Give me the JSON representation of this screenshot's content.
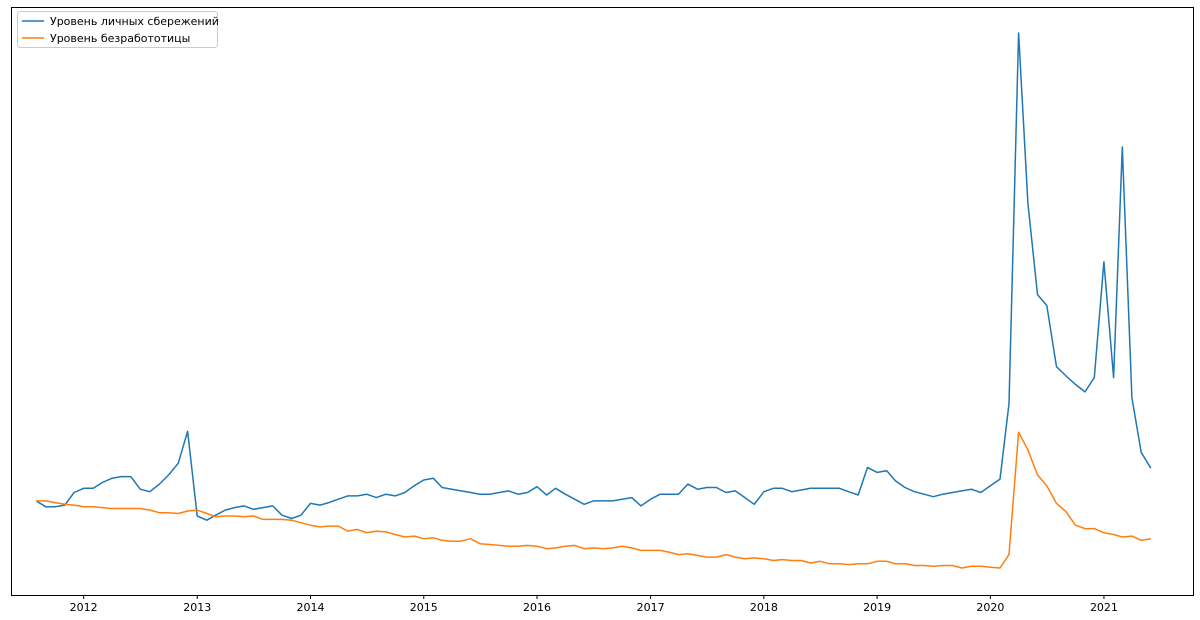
{
  "chart_data": {
    "type": "line",
    "title": "",
    "xlabel": "",
    "ylabel": "",
    "grid": false,
    "legend_position": "top-left",
    "x_tick_labels": [
      "2012",
      "2013",
      "2014",
      "2015",
      "2016",
      "2017",
      "2018",
      "2019",
      "2020",
      "2021"
    ],
    "xlim": [
      "2011-05-15",
      "2021-10-15"
    ],
    "y_ticks_visible": false,
    "series": [
      {
        "name": "Уровень личных сбережений",
        "color": "#1f77b4",
        "points": [
          [
            "2011-08-01",
            8.2
          ],
          [
            "2011-09-01",
            7.5
          ],
          [
            "2011-10-01",
            7.5
          ],
          [
            "2011-11-01",
            7.7
          ],
          [
            "2011-12-01",
            9.2
          ],
          [
            "2012-01-01",
            9.7
          ],
          [
            "2012-02-01",
            9.7
          ],
          [
            "2012-03-01",
            10.4
          ],
          [
            "2012-04-01",
            10.9
          ],
          [
            "2012-05-01",
            11.1
          ],
          [
            "2012-06-01",
            11.1
          ],
          [
            "2012-07-01",
            9.6
          ],
          [
            "2012-08-01",
            9.3
          ],
          [
            "2012-09-01",
            10.2
          ],
          [
            "2012-10-01",
            11.3
          ],
          [
            "2012-11-01",
            12.7
          ],
          [
            "2012-12-01",
            16.5
          ],
          [
            "2013-01-01",
            6.4
          ],
          [
            "2013-02-01",
            5.9
          ],
          [
            "2013-03-01",
            6.5
          ],
          [
            "2013-04-01",
            7.1
          ],
          [
            "2013-05-01",
            7.4
          ],
          [
            "2013-06-01",
            7.6
          ],
          [
            "2013-07-01",
            7.2
          ],
          [
            "2013-08-01",
            7.4
          ],
          [
            "2013-09-01",
            7.6
          ],
          [
            "2013-10-01",
            6.5
          ],
          [
            "2013-11-01",
            6.1
          ],
          [
            "2013-12-01",
            6.5
          ],
          [
            "2014-01-01",
            7.9
          ],
          [
            "2014-02-01",
            7.7
          ],
          [
            "2014-03-01",
            8.0
          ],
          [
            "2014-04-01",
            8.4
          ],
          [
            "2014-05-01",
            8.8
          ],
          [
            "2014-06-01",
            8.8
          ],
          [
            "2014-07-01",
            9.0
          ],
          [
            "2014-08-01",
            8.6
          ],
          [
            "2014-09-01",
            9.0
          ],
          [
            "2014-10-01",
            8.8
          ],
          [
            "2014-11-01",
            9.2
          ],
          [
            "2014-12-01",
            10.0
          ],
          [
            "2015-01-01",
            10.7
          ],
          [
            "2015-02-01",
            10.9
          ],
          [
            "2015-03-01",
            9.8
          ],
          [
            "2015-04-01",
            9.6
          ],
          [
            "2015-05-01",
            9.4
          ],
          [
            "2015-06-01",
            9.2
          ],
          [
            "2015-07-01",
            9.0
          ],
          [
            "2015-08-01",
            9.0
          ],
          [
            "2015-09-01",
            9.2
          ],
          [
            "2015-10-01",
            9.4
          ],
          [
            "2015-11-01",
            9.0
          ],
          [
            "2015-12-01",
            9.2
          ],
          [
            "2016-01-01",
            9.9
          ],
          [
            "2016-02-01",
            8.9
          ],
          [
            "2016-03-01",
            9.7
          ],
          [
            "2016-04-01",
            9.0
          ],
          [
            "2016-05-01",
            8.4
          ],
          [
            "2016-06-01",
            7.8
          ],
          [
            "2016-07-01",
            8.2
          ],
          [
            "2016-08-01",
            8.2
          ],
          [
            "2016-09-01",
            8.2
          ],
          [
            "2016-10-01",
            8.4
          ],
          [
            "2016-11-01",
            8.6
          ],
          [
            "2016-12-01",
            7.6
          ],
          [
            "2017-01-01",
            8.4
          ],
          [
            "2017-02-01",
            9.0
          ],
          [
            "2017-03-01",
            9.0
          ],
          [
            "2017-04-01",
            9.0
          ],
          [
            "2017-05-01",
            10.2
          ],
          [
            "2017-06-01",
            9.6
          ],
          [
            "2017-07-01",
            9.8
          ],
          [
            "2017-08-01",
            9.8
          ],
          [
            "2017-09-01",
            9.2
          ],
          [
            "2017-10-01",
            9.4
          ],
          [
            "2017-11-01",
            8.6
          ],
          [
            "2017-12-01",
            7.8
          ],
          [
            "2018-01-01",
            9.3
          ],
          [
            "2018-02-01",
            9.7
          ],
          [
            "2018-03-01",
            9.7
          ],
          [
            "2018-04-01",
            9.3
          ],
          [
            "2018-05-01",
            9.5
          ],
          [
            "2018-06-01",
            9.7
          ],
          [
            "2018-07-01",
            9.7
          ],
          [
            "2018-08-01",
            9.7
          ],
          [
            "2018-09-01",
            9.7
          ],
          [
            "2018-10-01",
            9.3
          ],
          [
            "2018-11-01",
            8.9
          ],
          [
            "2018-12-01",
            12.2
          ],
          [
            "2019-01-01",
            11.6
          ],
          [
            "2019-02-01",
            11.8
          ],
          [
            "2019-03-01",
            10.6
          ],
          [
            "2019-04-01",
            9.8
          ],
          [
            "2019-05-01",
            9.3
          ],
          [
            "2019-06-01",
            9.0
          ],
          [
            "2019-07-01",
            8.7
          ],
          [
            "2019-08-01",
            9.0
          ],
          [
            "2019-09-01",
            9.2
          ],
          [
            "2019-10-01",
            9.4
          ],
          [
            "2019-11-01",
            9.6
          ],
          [
            "2019-12-01",
            9.2
          ],
          [
            "2020-01-01",
            10.0
          ],
          [
            "2020-02-01",
            10.8
          ],
          [
            "2020-03-01",
            19.8
          ],
          [
            "2020-04-01",
            64.0
          ],
          [
            "2020-05-01",
            43.7
          ],
          [
            "2020-06-01",
            32.8
          ],
          [
            "2020-07-01",
            31.5
          ],
          [
            "2020-08-01",
            24.2
          ],
          [
            "2020-09-01",
            23.1
          ],
          [
            "2020-10-01",
            22.1
          ],
          [
            "2020-11-01",
            21.2
          ],
          [
            "2020-12-01",
            22.9
          ],
          [
            "2021-01-01",
            36.7
          ],
          [
            "2021-02-01",
            22.9
          ],
          [
            "2021-03-01",
            50.4
          ],
          [
            "2021-04-01",
            20.5
          ],
          [
            "2021-05-01",
            14.0
          ],
          [
            "2021-06-01",
            12.1
          ]
        ]
      },
      {
        "name": "Уровень безработотицы",
        "color": "#ff7f0e",
        "points": [
          [
            "2011-08-01",
            8.2
          ],
          [
            "2011-09-01",
            8.2
          ],
          [
            "2011-10-01",
            8.0
          ],
          [
            "2011-11-01",
            7.8
          ],
          [
            "2011-12-01",
            7.7
          ],
          [
            "2012-01-01",
            7.5
          ],
          [
            "2012-02-01",
            7.5
          ],
          [
            "2012-03-01",
            7.4
          ],
          [
            "2012-04-01",
            7.3
          ],
          [
            "2012-05-01",
            7.3
          ],
          [
            "2012-06-01",
            7.3
          ],
          [
            "2012-07-01",
            7.3
          ],
          [
            "2012-08-01",
            7.1
          ],
          [
            "2012-09-01",
            6.8
          ],
          [
            "2012-10-01",
            6.8
          ],
          [
            "2012-11-01",
            6.7
          ],
          [
            "2012-12-01",
            7.0
          ],
          [
            "2013-01-01",
            7.1
          ],
          [
            "2013-02-01",
            6.7
          ],
          [
            "2013-03-01",
            6.3
          ],
          [
            "2013-04-01",
            6.4
          ],
          [
            "2013-05-01",
            6.4
          ],
          [
            "2013-06-01",
            6.3
          ],
          [
            "2013-07-01",
            6.4
          ],
          [
            "2013-08-01",
            6.0
          ],
          [
            "2013-09-01",
            6.0
          ],
          [
            "2013-10-01",
            6.0
          ],
          [
            "2013-11-01",
            5.9
          ],
          [
            "2013-12-01",
            5.6
          ],
          [
            "2014-01-01",
            5.3
          ],
          [
            "2014-02-01",
            5.1
          ],
          [
            "2014-03-01",
            5.2
          ],
          [
            "2014-04-01",
            5.2
          ],
          [
            "2014-05-01",
            4.6
          ],
          [
            "2014-06-01",
            4.8
          ],
          [
            "2014-07-01",
            4.4
          ],
          [
            "2014-08-01",
            4.6
          ],
          [
            "2014-09-01",
            4.5
          ],
          [
            "2014-10-01",
            4.2
          ],
          [
            "2014-11-01",
            3.9
          ],
          [
            "2014-12-01",
            4.0
          ],
          [
            "2015-01-01",
            3.7
          ],
          [
            "2015-02-01",
            3.8
          ],
          [
            "2015-03-01",
            3.5
          ],
          [
            "2015-04-01",
            3.4
          ],
          [
            "2015-05-01",
            3.4
          ],
          [
            "2015-06-01",
            3.7
          ],
          [
            "2015-07-01",
            3.1
          ],
          [
            "2015-08-01",
            3.0
          ],
          [
            "2015-09-01",
            2.9
          ],
          [
            "2015-10-01",
            2.8
          ],
          [
            "2015-11-01",
            2.8
          ],
          [
            "2015-12-01",
            2.9
          ],
          [
            "2016-01-01",
            2.8
          ],
          [
            "2016-02-01",
            2.5
          ],
          [
            "2016-03-01",
            2.6
          ],
          [
            "2016-04-01",
            2.8
          ],
          [
            "2016-05-01",
            2.9
          ],
          [
            "2016-06-01",
            2.5
          ],
          [
            "2016-07-01",
            2.6
          ],
          [
            "2016-08-01",
            2.5
          ],
          [
            "2016-09-01",
            2.6
          ],
          [
            "2016-10-01",
            2.8
          ],
          [
            "2016-11-01",
            2.6
          ],
          [
            "2016-12-01",
            2.3
          ],
          [
            "2017-01-01",
            2.3
          ],
          [
            "2017-02-01",
            2.3
          ],
          [
            "2017-03-01",
            2.1
          ],
          [
            "2017-04-01",
            1.8
          ],
          [
            "2017-05-01",
            1.9
          ],
          [
            "2017-06-01",
            1.7
          ],
          [
            "2017-07-01",
            1.5
          ],
          [
            "2017-08-01",
            1.5
          ],
          [
            "2017-09-01",
            1.8
          ],
          [
            "2017-10-01",
            1.5
          ],
          [
            "2017-11-01",
            1.3
          ],
          [
            "2017-12-01",
            1.4
          ],
          [
            "2018-01-01",
            1.3
          ],
          [
            "2018-02-01",
            1.1
          ],
          [
            "2018-03-01",
            1.2
          ],
          [
            "2018-04-01",
            1.1
          ],
          [
            "2018-05-01",
            1.1
          ],
          [
            "2018-06-01",
            0.8
          ],
          [
            "2018-07-01",
            1.0
          ],
          [
            "2018-08-01",
            0.7
          ],
          [
            "2018-09-01",
            0.7
          ],
          [
            "2018-10-01",
            0.6
          ],
          [
            "2018-11-01",
            0.7
          ],
          [
            "2018-12-01",
            0.7
          ],
          [
            "2019-01-01",
            1.0
          ],
          [
            "2019-02-01",
            1.0
          ],
          [
            "2019-03-01",
            0.7
          ],
          [
            "2019-04-01",
            0.7
          ],
          [
            "2019-05-01",
            0.5
          ],
          [
            "2019-06-01",
            0.5
          ],
          [
            "2019-07-01",
            0.4
          ],
          [
            "2019-08-01",
            0.5
          ],
          [
            "2019-09-01",
            0.5
          ],
          [
            "2019-10-01",
            0.2
          ],
          [
            "2019-11-01",
            0.4
          ],
          [
            "2019-12-01",
            0.4
          ],
          [
            "2020-01-01",
            0.3
          ],
          [
            "2020-02-01",
            0.2
          ],
          [
            "2020-03-01",
            1.8
          ],
          [
            "2020-04-01",
            16.4
          ],
          [
            "2020-05-01",
            14.3
          ],
          [
            "2020-06-01",
            11.3
          ],
          [
            "2020-07-01",
            10.0
          ],
          [
            "2020-08-01",
            7.9
          ],
          [
            "2020-09-01",
            6.9
          ],
          [
            "2020-10-01",
            5.3
          ],
          [
            "2020-11-01",
            4.9
          ],
          [
            "2020-12-01",
            4.9
          ],
          [
            "2021-01-01",
            4.4
          ],
          [
            "2021-02-01",
            4.2
          ],
          [
            "2021-03-01",
            3.9
          ],
          [
            "2021-04-01",
            4.0
          ],
          [
            "2021-05-01",
            3.5
          ],
          [
            "2021-06-01",
            3.7
          ]
        ]
      }
    ]
  }
}
